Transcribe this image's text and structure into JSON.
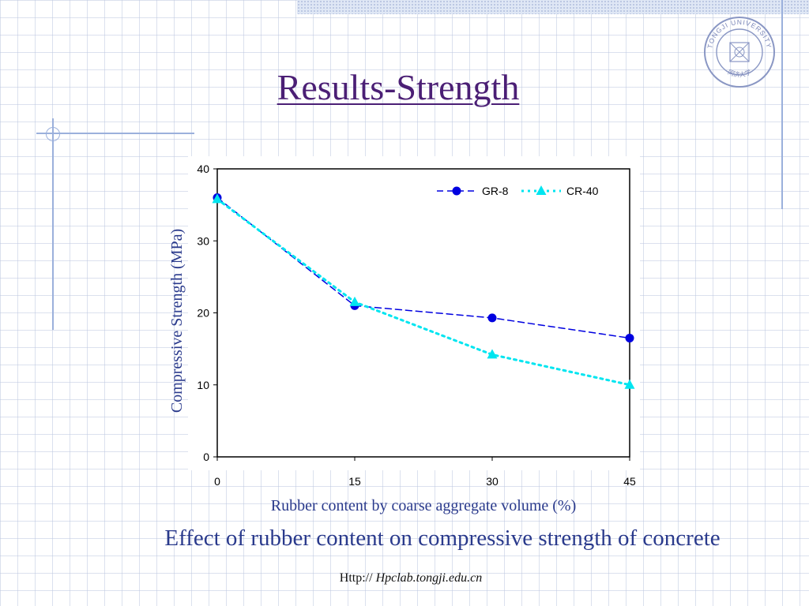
{
  "slide": {
    "title": "Results-Strength",
    "caption": "Effect of rubber content on compressive strength of concrete",
    "footer_prefix": "Http://",
    "footer_url": "Hpclab.tongji.edu.cn",
    "logo_text": "TONGJI UNIVERSITY",
    "logo_chinese": "同济大学"
  },
  "colors": {
    "title": "#4b1f75",
    "axis_labels": "#2a3a8c",
    "gr8": "#0000e0",
    "cr40": "#00e5f0"
  },
  "icons": [
    "tongji-university-logo"
  ],
  "chart_data": {
    "type": "line",
    "title": "",
    "xlabel": "Rubber content by coarse aggregate volume (%)",
    "ylabel": "Compressive Strength (MPa)",
    "x": [
      0,
      15,
      30,
      45
    ],
    "x_ticks": [
      "0",
      "15",
      "30",
      "45"
    ],
    "y_ticks": [
      "0",
      "10",
      "20",
      "30",
      "40"
    ],
    "xlim": [
      0,
      45
    ],
    "ylim": [
      0,
      40
    ],
    "grid": false,
    "legend": "top-right",
    "series": [
      {
        "name": "GR-8",
        "values": [
          36,
          21,
          19.3,
          16.5
        ],
        "marker": "circle",
        "style": "dashed"
      },
      {
        "name": "CR-40",
        "values": [
          35.8,
          21.5,
          14.2,
          10
        ],
        "marker": "triangle",
        "style": "dotted"
      }
    ]
  }
}
